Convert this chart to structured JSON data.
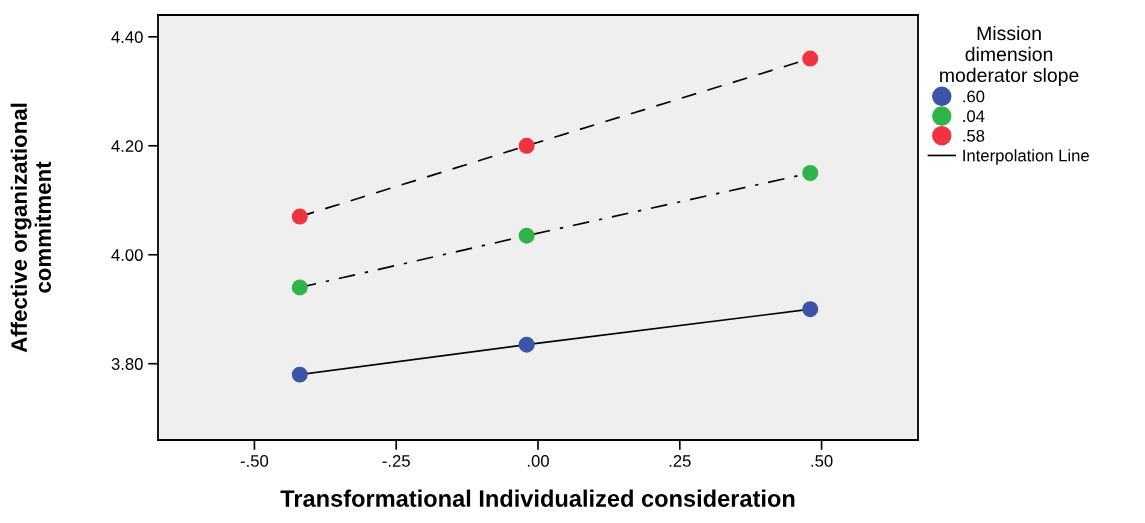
{
  "chart_data": {
    "type": "line",
    "xlabel": "Transformational Individualized consideration",
    "ylabel": "Affective organizational\ncommitment",
    "legend_title": "Mission\ndimension\nmoderator slope",
    "x": [
      -0.42,
      -0.02,
      0.48
    ],
    "series": [
      {
        "name": ".60",
        "color": "#3b56a8",
        "values": [
          3.78,
          3.835,
          3.9
        ],
        "line_style": "solid"
      },
      {
        "name": ".04",
        "color": "#2fb44a",
        "values": [
          3.94,
          4.035,
          4.15
        ],
        "line_style": "dashdot"
      },
      {
        "name": ".58",
        "color": "#ef3340",
        "values": [
          4.07,
          4.2,
          4.36
        ],
        "line_style": "dashed"
      }
    ],
    "annotations": [
      "Interpolation Line"
    ],
    "marker": "circle",
    "legend": "right",
    "grid": false,
    "xlim": [
      -0.67,
      0.67
    ],
    "ylim": [
      3.66,
      4.44
    ],
    "xticks": [
      {
        "value": -0.5,
        "label": "-.50"
      },
      {
        "value": -0.25,
        "label": "-.25"
      },
      {
        "value": 0,
        "label": ".00"
      },
      {
        "value": 0.25,
        "label": ".25"
      },
      {
        "value": 0.5,
        "label": ".50"
      }
    ],
    "yticks": [
      {
        "value": 3.8,
        "label": "3.80"
      },
      {
        "value": 4.0,
        "label": "4.00"
      },
      {
        "value": 4.2,
        "label": "4.20"
      },
      {
        "value": 4.4,
        "label": "4.40"
      }
    ]
  }
}
